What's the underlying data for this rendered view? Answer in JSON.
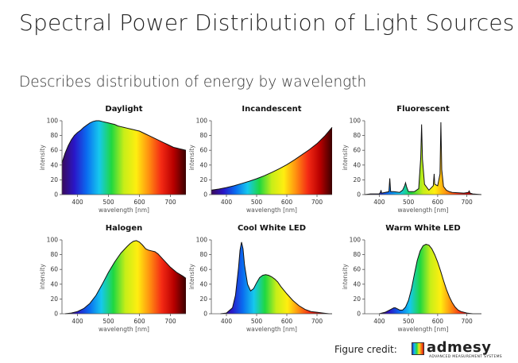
{
  "slide": {
    "title": "Spectral Power Distribution of Light Sources",
    "subtitle": "Describes distribution of energy by wavelength"
  },
  "credit": {
    "label": "Figure credit:",
    "logo_text": "admesy",
    "logo_tagline": "ADVANCED MEASUREMENT SYSTEMS"
  },
  "colors": {
    "spectrum_stops": [
      "#3a0a5a",
      "#2a16c8",
      "#0a6cf0",
      "#16c8ee",
      "#1fd840",
      "#c7ee18",
      "#ffee10",
      "#ff9010",
      "#f42a14",
      "#b80000",
      "#3a0000"
    ]
  },
  "chart_data": [
    {
      "id": "daylight",
      "type": "area",
      "title": "Daylight",
      "xlabel": "wavelength [nm]",
      "ylabel": "intensity",
      "xlim": [
        350,
        750
      ],
      "ylim": [
        0,
        100
      ],
      "xticks": [
        400,
        500,
        600,
        700
      ],
      "yticks": [
        0,
        20,
        40,
        60,
        80,
        100
      ],
      "x": [
        350,
        360,
        370,
        380,
        390,
        400,
        410,
        420,
        430,
        440,
        450,
        460,
        470,
        480,
        490,
        500,
        510,
        520,
        530,
        540,
        550,
        560,
        570,
        580,
        590,
        600,
        610,
        620,
        630,
        640,
        650,
        660,
        670,
        680,
        690,
        700,
        710,
        720,
        730,
        740,
        750
      ],
      "y": [
        43,
        56,
        66,
        74,
        80,
        84,
        87,
        91,
        94,
        97,
        99,
        100,
        100,
        99,
        98,
        97,
        96,
        95,
        93,
        92,
        91,
        90,
        89,
        88,
        87,
        86,
        84,
        82,
        80,
        78,
        76,
        74,
        72,
        70,
        68,
        66,
        64,
        63,
        62,
        61,
        60
      ]
    },
    {
      "id": "incandescent",
      "type": "area",
      "title": "Incandescent",
      "xlabel": "wavelength [nm]",
      "ylabel": "intensity",
      "xlim": [
        350,
        750
      ],
      "ylim": [
        0,
        100
      ],
      "xticks": [
        400,
        500,
        600,
        700
      ],
      "yticks": [
        0,
        20,
        40,
        60,
        80,
        100
      ],
      "x": [
        350,
        375,
        400,
        425,
        450,
        475,
        500,
        525,
        550,
        575,
        600,
        625,
        650,
        675,
        700,
        725,
        750
      ],
      "y": [
        6,
        7.5,
        9.5,
        12,
        15,
        18,
        21.5,
        25.5,
        30,
        35,
        40.5,
        47,
        54,
        61,
        69,
        79,
        91
      ]
    },
    {
      "id": "fluorescent",
      "type": "area",
      "title": "Fluorescent",
      "xlabel": "wavelength [nm]",
      "ylabel": "intensity",
      "xlim": [
        350,
        750
      ],
      "ylim": [
        0,
        100
      ],
      "xticks": [
        400,
        500,
        600,
        700
      ],
      "yticks": [
        0,
        20,
        40,
        60,
        80,
        100
      ],
      "x": [
        350,
        370,
        400,
        404,
        406,
        408,
        420,
        433,
        436,
        439,
        450,
        470,
        480,
        487,
        490,
        494,
        500,
        520,
        535,
        542,
        545,
        548,
        555,
        570,
        580,
        585,
        588,
        590,
        595,
        600,
        608,
        611,
        614,
        620,
        630,
        640,
        650,
        690,
        705,
        708,
        711,
        720,
        750
      ],
      "y": [
        0,
        1,
        1,
        3,
        6,
        2,
        3,
        4,
        22,
        4,
        4,
        3,
        6,
        12,
        16,
        10,
        4,
        4,
        8,
        50,
        95,
        48,
        14,
        6,
        10,
        12,
        28,
        14,
        13,
        12,
        28,
        98,
        34,
        11,
        6,
        4,
        3,
        2,
        3,
        5,
        2,
        1,
        0
      ]
    },
    {
      "id": "halogen",
      "type": "area",
      "title": "Halogen",
      "xlabel": "wavelength [nm]",
      "ylabel": "intensity",
      "xlim": [
        350,
        750
      ],
      "ylim": [
        0,
        100
      ],
      "xticks": [
        400,
        500,
        600,
        700
      ],
      "yticks": [
        0,
        20,
        40,
        60,
        80,
        100
      ],
      "x": [
        360,
        380,
        400,
        420,
        440,
        460,
        480,
        500,
        520,
        540,
        560,
        570,
        580,
        590,
        600,
        610,
        620,
        630,
        640,
        650,
        660,
        680,
        700,
        720,
        740,
        750
      ],
      "y": [
        0,
        1,
        3,
        7,
        14,
        25,
        40,
        56,
        70,
        82,
        91,
        95,
        98,
        99,
        97,
        93,
        88,
        86,
        85,
        84,
        81,
        72,
        63,
        56,
        51,
        48
      ]
    },
    {
      "id": "cool_white_led",
      "type": "area",
      "title": "Cool White LED",
      "xlabel": "wavelength [nm]",
      "ylabel": "intensity",
      "xlim": [
        350,
        750
      ],
      "ylim": [
        0,
        100
      ],
      "xticks": [
        400,
        500,
        600,
        700
      ],
      "yticks": [
        0,
        20,
        40,
        60,
        80,
        100
      ],
      "x": [
        380,
        400,
        420,
        430,
        440,
        445,
        450,
        455,
        460,
        470,
        480,
        490,
        500,
        510,
        520,
        530,
        540,
        550,
        560,
        570,
        580,
        600,
        620,
        640,
        660,
        680,
        700,
        720,
        740,
        750
      ],
      "y": [
        0,
        1,
        8,
        25,
        62,
        86,
        97,
        88,
        66,
        40,
        31,
        34,
        42,
        49,
        52,
        53,
        52,
        50,
        47,
        43,
        37,
        27,
        18,
        11,
        6,
        3,
        2,
        1,
        0,
        0
      ]
    },
    {
      "id": "warm_white_led",
      "type": "area",
      "title": "Warm White LED",
      "xlabel": "wavelength [nm]",
      "ylabel": "intensity",
      "xlim": [
        350,
        750
      ],
      "ylim": [
        0,
        100
      ],
      "xticks": [
        400,
        500,
        600,
        700
      ],
      "yticks": [
        0,
        20,
        40,
        60,
        80,
        100
      ],
      "x": [
        400,
        420,
        440,
        450,
        455,
        460,
        470,
        480,
        490,
        500,
        510,
        520,
        530,
        540,
        550,
        560,
        570,
        580,
        590,
        600,
        610,
        620,
        630,
        640,
        650,
        660,
        670,
        680,
        700,
        720,
        740,
        750
      ],
      "y": [
        0,
        2,
        6,
        8,
        8,
        7,
        5,
        5,
        9,
        18,
        33,
        53,
        72,
        85,
        92,
        94,
        93,
        88,
        80,
        70,
        58,
        45,
        33,
        23,
        15,
        9,
        5,
        3,
        1,
        0,
        0,
        0
      ]
    }
  ]
}
